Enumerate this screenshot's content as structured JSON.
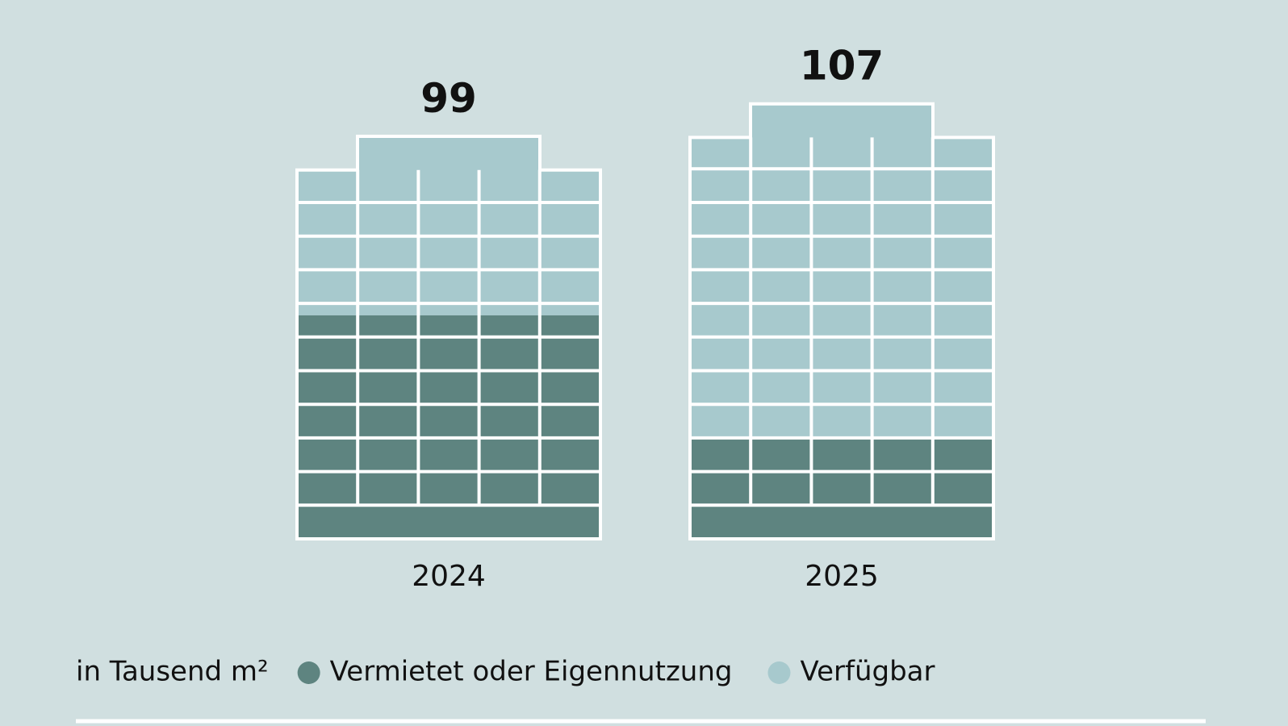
{
  "chart_data": {
    "type": "building",
    "unit": "in Tausend m²",
    "categories": [
      "2024",
      "2025"
    ],
    "totals": [
      99,
      107
    ],
    "series": [
      {
        "name": "Vermietet oder Eigennutzung",
        "color": "#5e8480",
        "values": [
          55,
          25
        ]
      },
      {
        "name": "Verfügbar",
        "color": "#a7c9cd",
        "values": [
          44,
          82
        ]
      }
    ]
  }
}
